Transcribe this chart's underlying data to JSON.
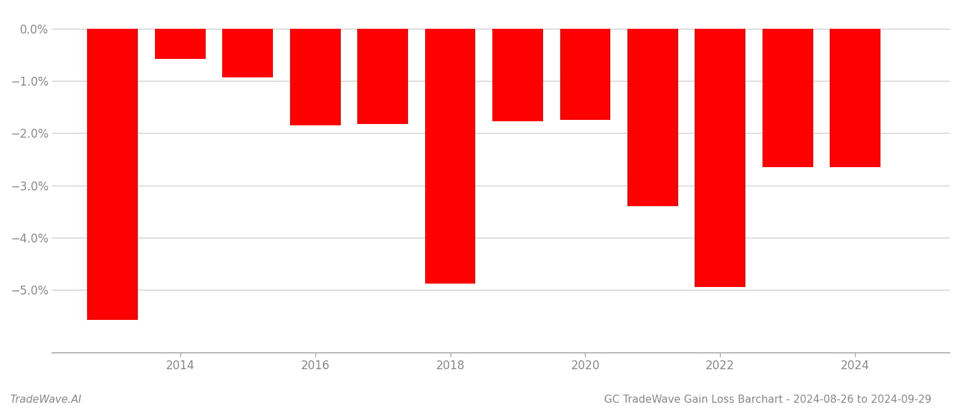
{
  "years": [
    2013,
    2014,
    2015,
    2016,
    2017,
    2018,
    2019,
    2020,
    2021,
    2022,
    2023,
    2024
  ],
  "values": [
    -5.58,
    -0.58,
    -0.93,
    -1.85,
    -1.83,
    -4.88,
    -1.78,
    -1.75,
    -3.4,
    -4.95,
    -2.65,
    -2.65
  ],
  "bar_color": "#ff0000",
  "background_color": "#ffffff",
  "grid_color": "#c8c8c8",
  "axis_color": "#aaaaaa",
  "text_color": "#888888",
  "ylim_min": -6.2,
  "ylim_max": 0.35,
  "yticks": [
    0.0,
    -1.0,
    -2.0,
    -3.0,
    -4.0,
    -5.0
  ],
  "xlabel_ticks": [
    2014,
    2016,
    2018,
    2020,
    2022,
    2024
  ],
  "title": "GC TradeWave Gain Loss Barchart - 2024-08-26 to 2024-09-29",
  "watermark": "TradeWave.AI",
  "title_fontsize": 11,
  "watermark_fontsize": 11,
  "tick_fontsize": 12,
  "bar_width": 0.75,
  "xlim_min": 2012.1,
  "xlim_max": 2025.4
}
